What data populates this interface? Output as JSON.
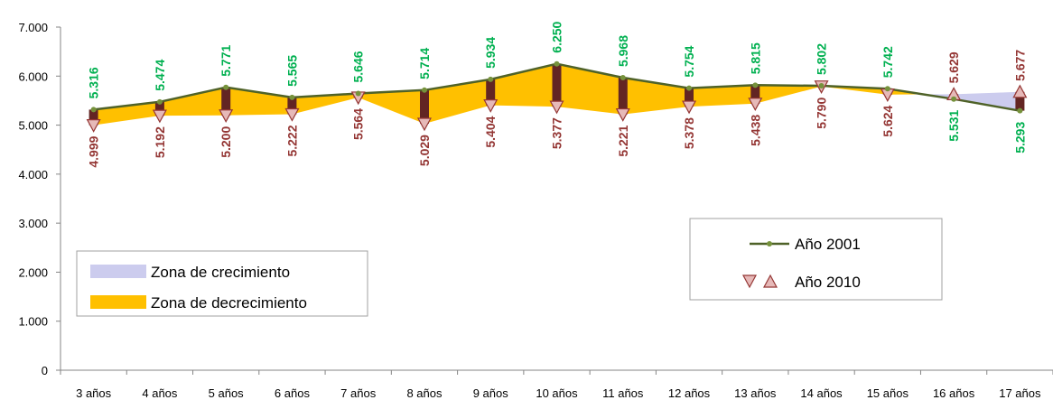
{
  "chart_data": {
    "type": "line",
    "categories": [
      "3 años",
      "4 años",
      "5 años",
      "6 años",
      "7 años",
      "8 años",
      "9 años",
      "10 años",
      "11 años",
      "12 años",
      "13 años",
      "14 años",
      "15 años",
      "16 años",
      "17 años"
    ],
    "series": [
      {
        "name": "Año 2001",
        "values": [
          5316,
          5474,
          5771,
          5565,
          5646,
          5714,
          5934,
          6250,
          5968,
          5754,
          5815,
          5802,
          5742,
          5531,
          5293
        ],
        "labels": [
          "5.316",
          "5.474",
          "5.771",
          "5.565",
          "5.646",
          "5.714",
          "5.934",
          "6.250",
          "5.968",
          "5.754",
          "5.815",
          "5.802",
          "5.742",
          "5.531",
          "5.293"
        ]
      },
      {
        "name": "Año 2010",
        "values": [
          4999,
          5192,
          5200,
          5222,
          5564,
          5029,
          5404,
          5377,
          5221,
          5378,
          5438,
          5790,
          5624,
          5629,
          5677
        ],
        "labels": [
          "4.999",
          "5.192",
          "5.200",
          "5.222",
          "5.564",
          "5.029",
          "5.404",
          "5.377",
          "5.221",
          "5.378",
          "5.438",
          "5.790",
          "5.624",
          "5.629",
          "5.677"
        ]
      }
    ],
    "yticks": [
      "0",
      "1.000",
      "2.000",
      "3.000",
      "4.000",
      "5.000",
      "6.000",
      "7.000"
    ],
    "ylim": [
      0,
      7000
    ],
    "grid": false,
    "areas": [
      {
        "name": "Zona de crecimiento",
        "color": "#ccccee"
      },
      {
        "name": "Zona de decrecimiento",
        "color": "#ffc000"
      }
    ],
    "colors": {
      "line_2001": "#4f6228",
      "marker_2001": "#76923c",
      "label_2001": "#00b050",
      "label_2010": "#943634",
      "marker_2010": "#e6b9b8",
      "marker_2010_stroke": "#953735",
      "bar": "#632523"
    }
  }
}
